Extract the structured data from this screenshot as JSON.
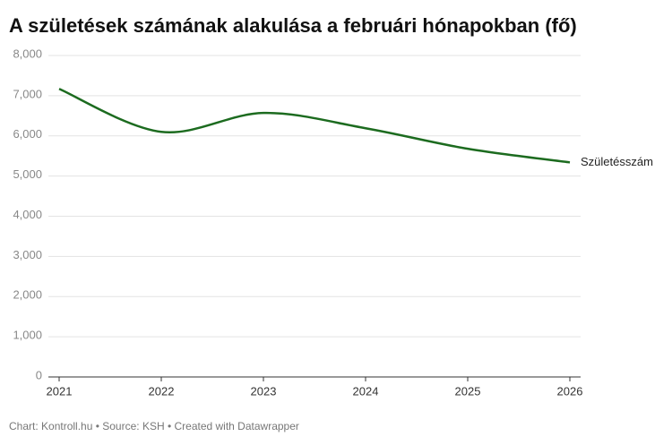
{
  "chart_data": {
    "type": "line",
    "title": "A születések számának alakulása a februári hónapokban (fő)",
    "footer": "Chart: Kontroll.hu • Source: KSH • Created with Datawrapper",
    "x": [
      2021,
      2022,
      2023,
      2024,
      2025,
      2026
    ],
    "series": [
      {
        "name": "Születésszám",
        "color": "#1c6b1f",
        "values": [
          7170,
          6100,
          6570,
          6190,
          5680,
          5340
        ]
      }
    ],
    "xlim": [
      2021,
      2026
    ],
    "xticks": [
      2021,
      2022,
      2023,
      2024,
      2025,
      2026
    ],
    "ylim": [
      0,
      8000
    ],
    "yticks": [
      0,
      {
        "value": 1000,
        "label": "1,000"
      },
      {
        "value": 2000,
        "label": "2,000"
      },
      {
        "value": 3000,
        "label": "3,000"
      },
      {
        "value": 4000,
        "label": "4,000"
      },
      {
        "value": 5000,
        "label": "5,000"
      },
      {
        "value": 6000,
        "label": "6,000"
      },
      {
        "value": 7000,
        "label": "7,000"
      },
      {
        "value": 8000,
        "label": "8,000"
      }
    ],
    "grid": true
  }
}
